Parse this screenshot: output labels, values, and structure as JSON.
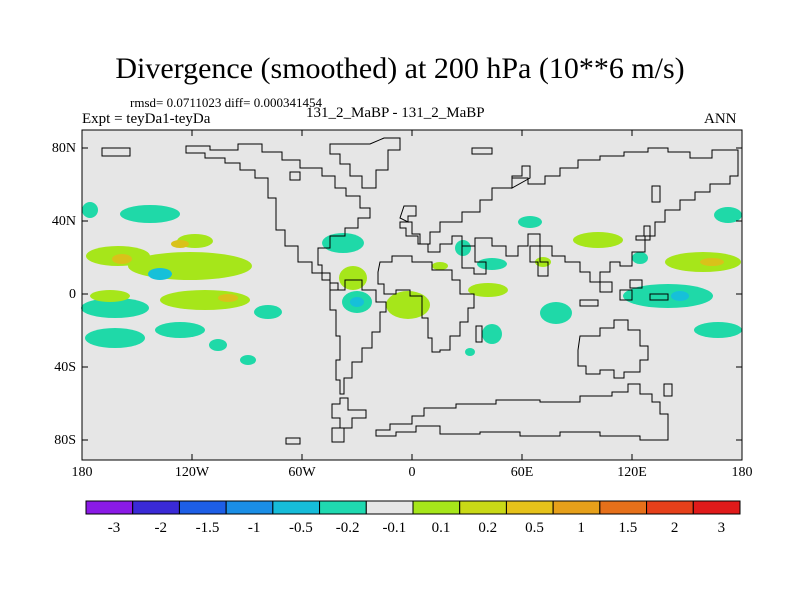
{
  "title": "Divergence (smoothed) at 200 hPa (10**6 m/s)",
  "stats_line": "rmsd= 0.0711023 diff= 0.000341454",
  "expt_line": "Expt = teyDa1-teyDa",
  "case_line": "131_2_MaBP - 131_2_MaBP",
  "season": "ANN",
  "axes": {
    "lat_labels": [
      "80N",
      "40N",
      "0",
      "40S",
      "80S"
    ],
    "lon_labels": [
      "180",
      "120W",
      "60W",
      "0",
      "60E",
      "120E",
      "180"
    ]
  },
  "colorbar": {
    "colors": [
      "#8a1ae6",
      "#3a2ad6",
      "#1d5ee6",
      "#1a8ee6",
      "#16bcd9",
      "#1fd9b0",
      "#e6e6e6",
      "#a6e61a",
      "#c9d916",
      "#e6c21a",
      "#e6a01a",
      "#e6701a",
      "#e6401a",
      "#e01a1a"
    ],
    "labels": [
      "-3",
      "-2",
      "-1.5",
      "-1",
      "-0.5",
      "-0.2",
      "-0.1",
      "0.1",
      "0.2",
      "0.5",
      "1",
      "1.5",
      "2",
      "3"
    ]
  },
  "map_colors": {
    "background": "#e6e6e6",
    "coast": "#000000",
    "teal": "#1fd9a8",
    "cyan": "#16c0d9",
    "lime": "#a6e61a",
    "gold": "#d9c21a"
  }
}
